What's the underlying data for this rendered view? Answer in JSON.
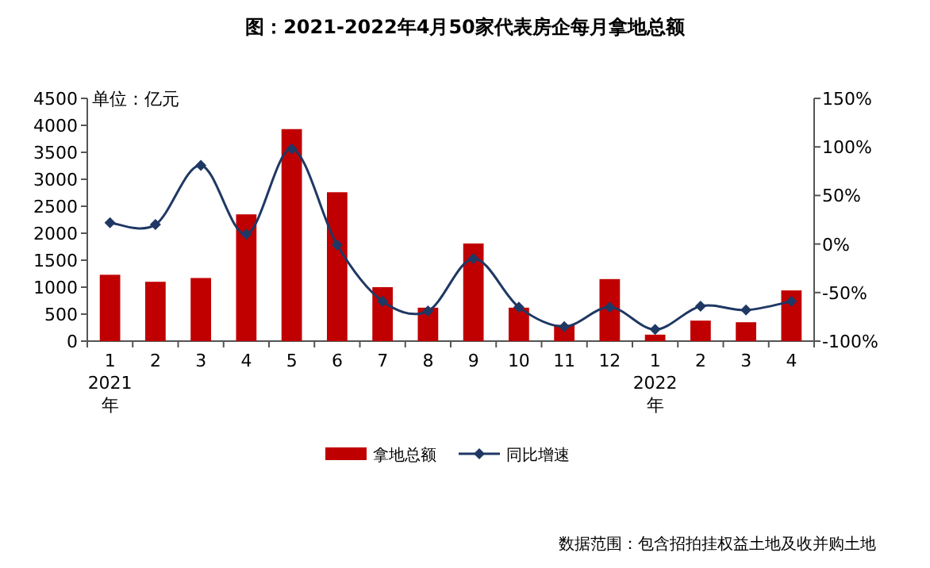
{
  "chart_data": {
    "type": "bar",
    "title": "图：2021-2022年4月50家代表房企每月拿地总额",
    "ylabel": "单位：亿元",
    "categories": [
      "1\n2021\n年",
      "2",
      "3",
      "4",
      "5",
      "6",
      "7",
      "8",
      "9",
      "10",
      "11",
      "12",
      "1\n2022\n年",
      "2",
      "3",
      "4"
    ],
    "series": [
      {
        "name": "拿地总额",
        "color": "#c00000",
        "values": [
          1230,
          1100,
          1170,
          2350,
          3930,
          2760,
          1000,
          620,
          1810,
          620,
          300,
          1150,
          120,
          380,
          350,
          940
        ]
      },
      {
        "name": "同比增速",
        "type": "line",
        "axis": "y2",
        "color": "#1f3864",
        "values": [
          22,
          20,
          81,
          10,
          98,
          -1,
          -59,
          -69,
          -15,
          -65,
          -85,
          -65,
          -88,
          -64,
          -68,
          -59
        ]
      }
    ],
    "ylim": [
      0,
      4500
    ],
    "yticks": [
      0,
      500,
      1000,
      1500,
      2000,
      2500,
      3000,
      3500,
      4000,
      4500
    ],
    "y2lim": [
      -100,
      150
    ],
    "y2ticks": [
      {
        "value": -100,
        "label": "-100%"
      },
      {
        "value": -50,
        "label": "-50%"
      },
      {
        "value": 0,
        "label": "0%"
      },
      {
        "value": 50,
        "label": "50%"
      },
      {
        "value": 100,
        "label": "100%"
      },
      {
        "value": 150,
        "label": "150%"
      }
    ],
    "marker": "diamond",
    "legend": "bottom",
    "annotations": [
      "数据范围：包含招拍挂权益土地及收并购土地"
    ]
  }
}
